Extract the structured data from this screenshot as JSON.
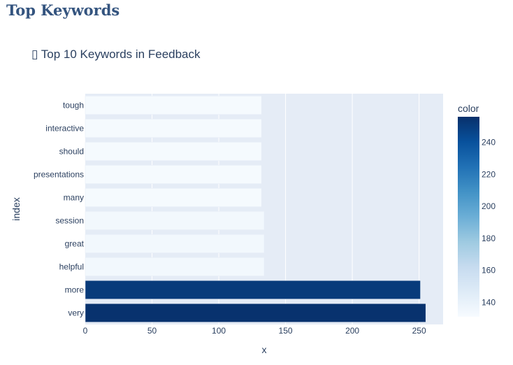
{
  "page": {
    "heading": "Top Keywords"
  },
  "chart_data": {
    "type": "bar",
    "orientation": "horizontal",
    "title": "▯ Top 10 Keywords in Feedback",
    "xlabel": "x",
    "ylabel": "index",
    "categories": [
      "very",
      "more",
      "helpful",
      "great",
      "session",
      "many",
      "presentations",
      "should",
      "interactive",
      "tough"
    ],
    "values": [
      255,
      251,
      134,
      134,
      134,
      132,
      132,
      132,
      132,
      132
    ],
    "xlim": [
      0,
      268
    ],
    "x_ticks": [
      0,
      50,
      100,
      150,
      200,
      250
    ],
    "grid": true,
    "colorbar": {
      "title": "color",
      "range": [
        131,
        256
      ],
      "ticks": [
        140,
        160,
        180,
        200,
        220,
        240
      ],
      "colorscale": [
        "#f7fbff",
        "#deebf7",
        "#c6dbef",
        "#9ecae1",
        "#6baed6",
        "#4292c6",
        "#2171b5",
        "#08519c",
        "#08306b"
      ]
    },
    "plot_bg": "#e5ecf6",
    "text_color": "#2a3f5f"
  }
}
